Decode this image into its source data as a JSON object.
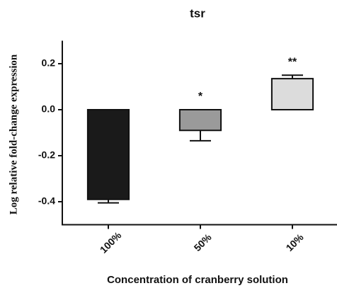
{
  "chart_data": {
    "type": "bar",
    "title": "tsr",
    "x_label": "Concentration of cranberry solution",
    "y_label": "Log relative fold-change expression",
    "categories": [
      "100%",
      "50%",
      "10%"
    ],
    "values": [
      -0.39,
      -0.09,
      0.135
    ],
    "errors": [
      0.015,
      0.045,
      0.015
    ],
    "colors": [
      "#1a1a1a",
      "#9a9a9a",
      "#dcdcdc"
    ],
    "annotations": [
      {
        "x": "50%",
        "text": "*"
      },
      {
        "x": "10%",
        "text": "**"
      }
    ],
    "ylim": [
      -0.5,
      0.3
    ],
    "yticks": [
      {
        "value": 0.2,
        "label": "0.2"
      },
      {
        "value": 0.0,
        "label": "0.0"
      },
      {
        "value": -0.2,
        "label": "-0.2"
      },
      {
        "value": -0.4,
        "label": "-0.4"
      }
    ],
    "grid": false
  }
}
